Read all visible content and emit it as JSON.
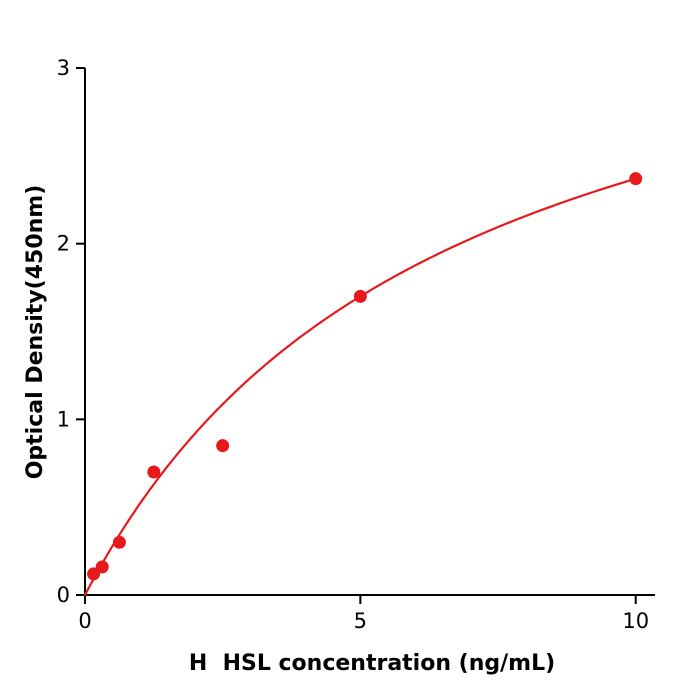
{
  "chart_data": {
    "type": "scatter",
    "title": "",
    "xlabel": "H  HSL concentration (ng/mL)",
    "ylabel": "Optical Density(450nm)",
    "x": [
      0.156,
      0.3125,
      0.625,
      1.25,
      2.5,
      5,
      10
    ],
    "y": [
      0.12,
      0.16,
      0.3,
      0.7,
      0.85,
      1.7,
      2.37
    ],
    "xlim": [
      0,
      10.35
    ],
    "ylim": [
      0,
      3
    ],
    "xticks": [
      0,
      5,
      10
    ],
    "yticks": [
      0,
      1,
      2,
      3
    ],
    "grid": false,
    "legend": "none",
    "point_color": "#e8191c",
    "line_color": "#e8191c",
    "axis_color": "#000000",
    "fit": {
      "type": "michaelis_menten",
      "vmax": 3.91,
      "km": 6.5
    }
  }
}
